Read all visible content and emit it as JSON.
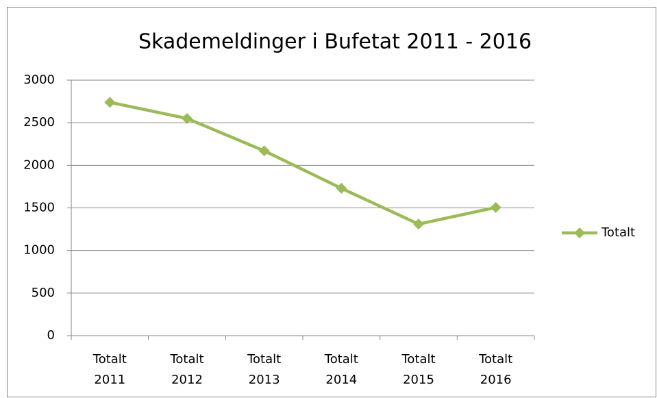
{
  "chart_data": {
    "type": "line",
    "title": "Skademeldinger i Bufetat 2011 - 2016",
    "categories": [
      "Totalt 2011",
      "Totalt 2012",
      "Totalt 2013",
      "Totalt 2014",
      "Totalt 2015",
      "Totalt 2016"
    ],
    "series": [
      {
        "name": "Totalt",
        "color": "#9bbb59",
        "values": [
          2740,
          2550,
          2170,
          1730,
          1310,
          1505
        ]
      }
    ],
    "ylim": [
      0,
      3000
    ],
    "yticks": [
      0,
      500,
      1000,
      1500,
      2000,
      2500,
      3000
    ],
    "grid": true,
    "legend": "right"
  }
}
